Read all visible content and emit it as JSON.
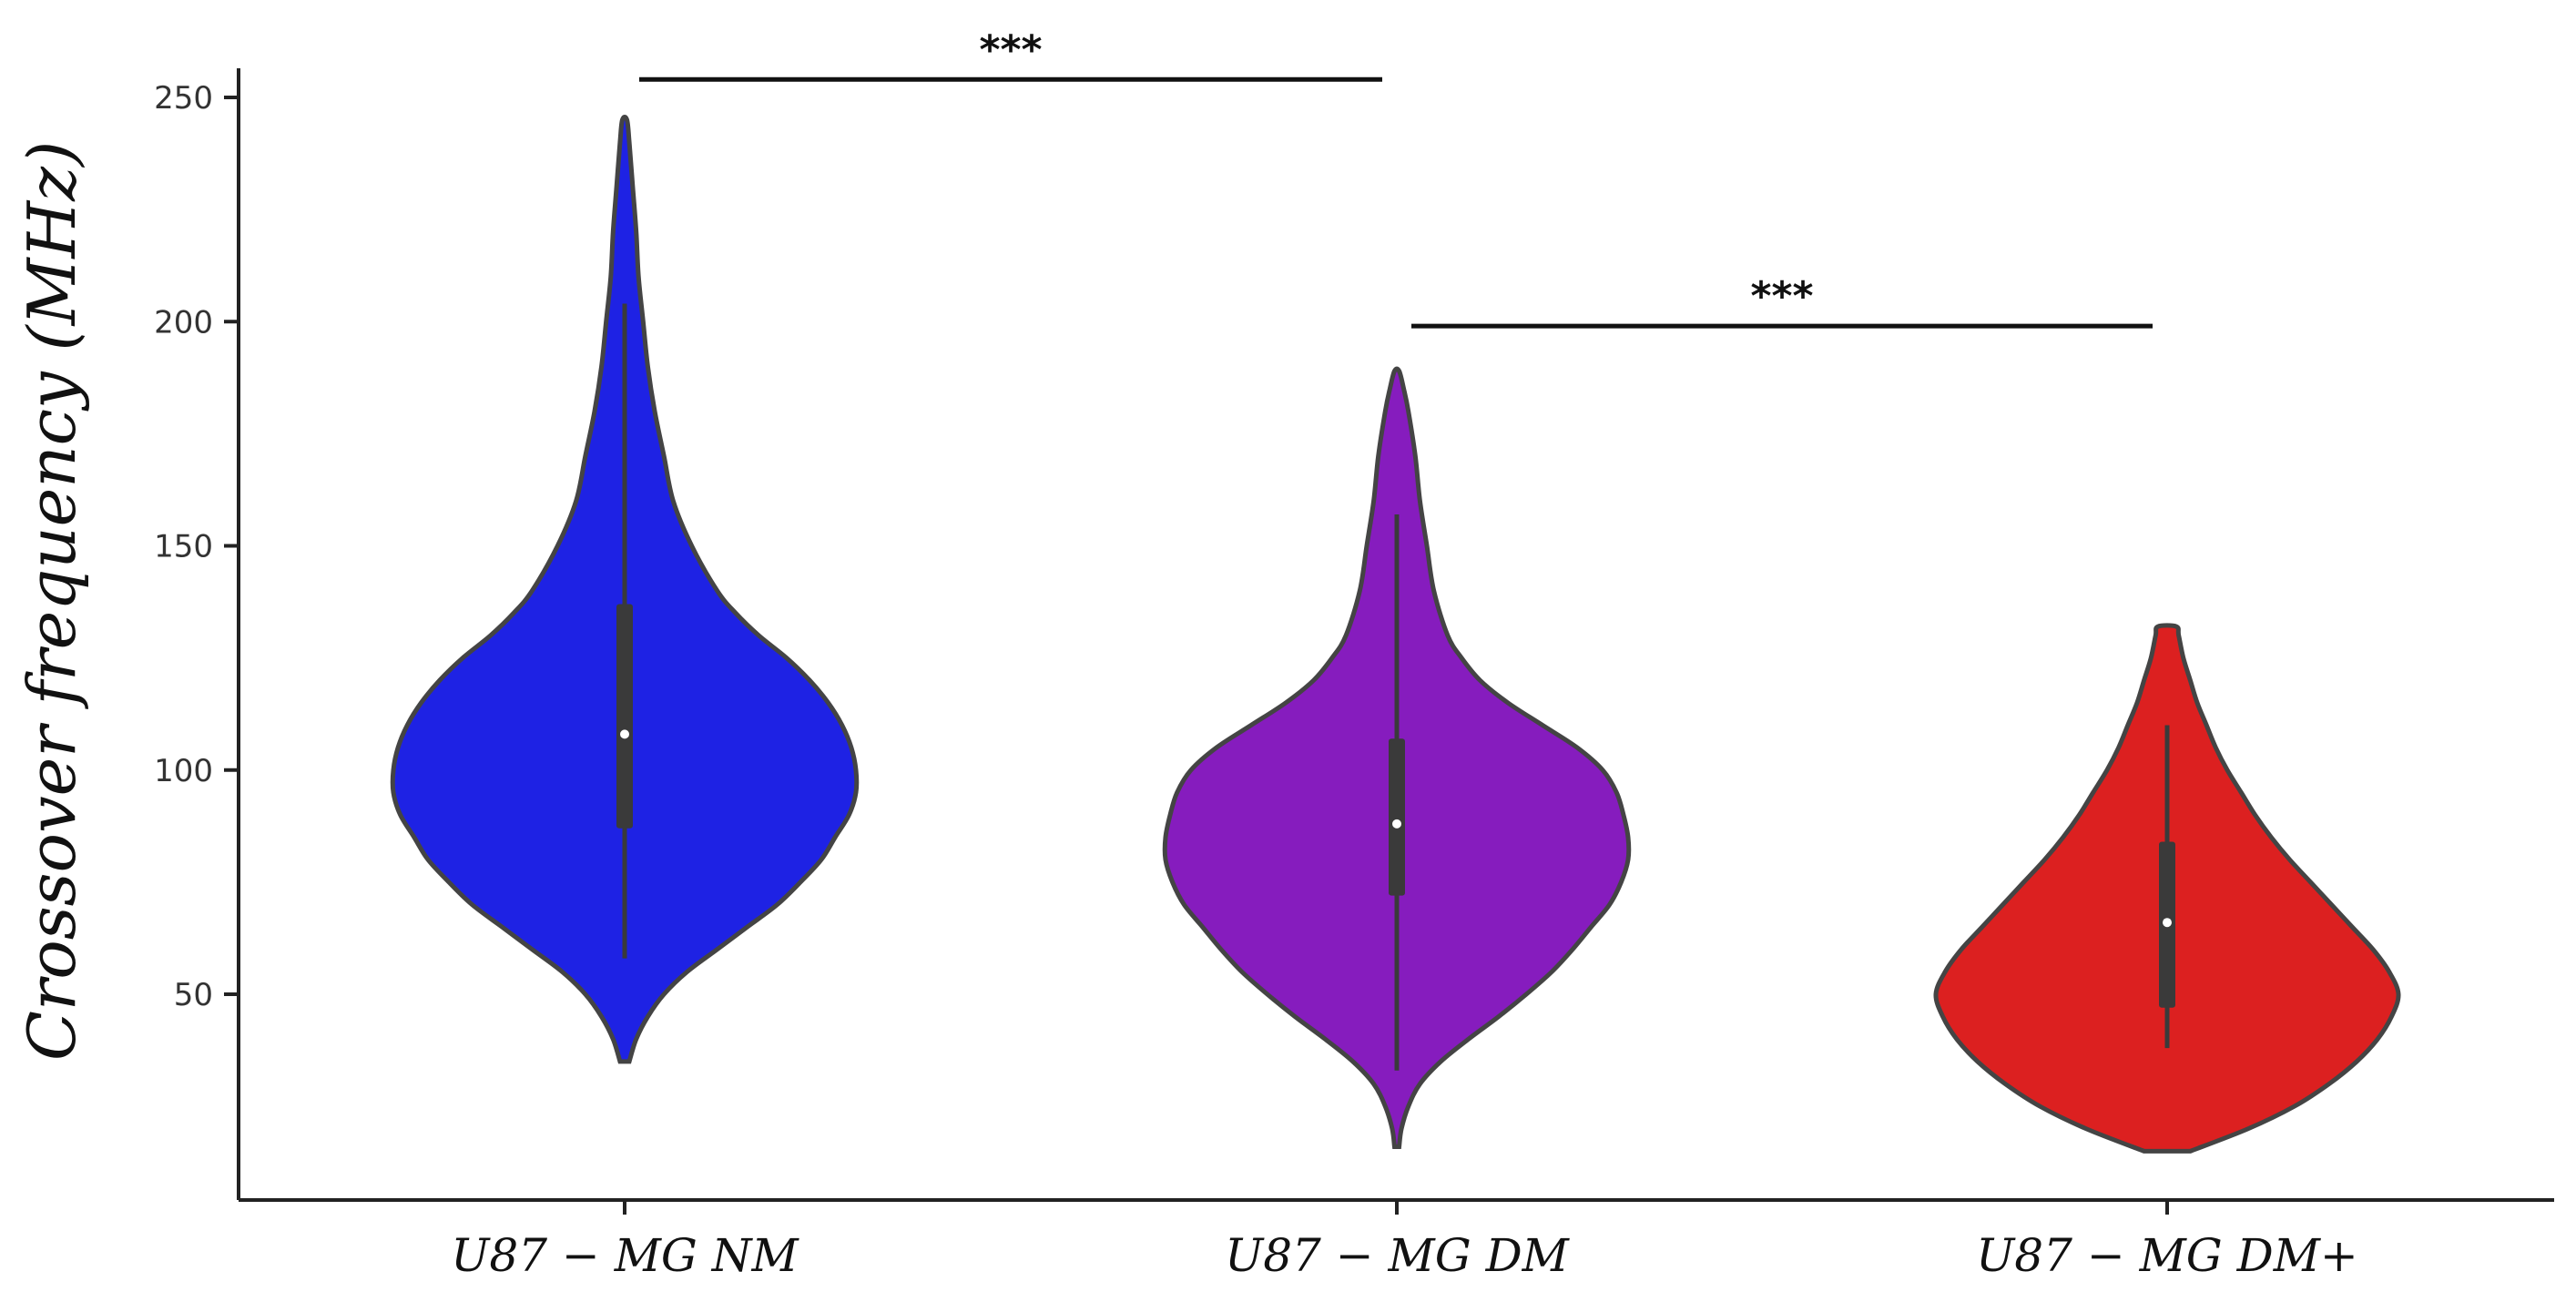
{
  "chart_data": {
    "type": "violin",
    "ylabel": "Crossover frequency (MHz)",
    "categories": [
      "U87 − MG NM",
      "U87 − MG DM",
      "U87 − MG DM+"
    ],
    "yticks": [
      50,
      100,
      150,
      200,
      250
    ],
    "ylim": [
      0,
      255
    ],
    "grid": false,
    "legend": "none",
    "series": [
      {
        "color": "#1e22e4",
        "min": 35,
        "max": 245,
        "q1": 87,
        "median": 108,
        "q3": 137,
        "whisker_low": 58,
        "whisker_high": 204,
        "density": [
          [
            35,
            0.02
          ],
          [
            40,
            0.05
          ],
          [
            45,
            0.1
          ],
          [
            50,
            0.17
          ],
          [
            55,
            0.27
          ],
          [
            60,
            0.4
          ],
          [
            65,
            0.53
          ],
          [
            70,
            0.66
          ],
          [
            75,
            0.76
          ],
          [
            80,
            0.85
          ],
          [
            85,
            0.91
          ],
          [
            90,
            0.97
          ],
          [
            95,
            1.0
          ],
          [
            100,
            1.0
          ],
          [
            105,
            0.98
          ],
          [
            110,
            0.94
          ],
          [
            115,
            0.88
          ],
          [
            120,
            0.8
          ],
          [
            125,
            0.7
          ],
          [
            130,
            0.58
          ],
          [
            135,
            0.48
          ],
          [
            140,
            0.4
          ],
          [
            150,
            0.29
          ],
          [
            160,
            0.21
          ],
          [
            170,
            0.17
          ],
          [
            180,
            0.13
          ],
          [
            190,
            0.1
          ],
          [
            200,
            0.08
          ],
          [
            210,
            0.06
          ],
          [
            220,
            0.05
          ],
          [
            230,
            0.035
          ],
          [
            240,
            0.02
          ],
          [
            245,
            0.01
          ]
        ]
      },
      {
        "color": "#861cbe",
        "min": 16,
        "max": 189,
        "q1": 72,
        "median": 88,
        "q3": 107,
        "whisker_low": 33,
        "whisker_high": 157,
        "density": [
          [
            16,
            0.01
          ],
          [
            20,
            0.02
          ],
          [
            25,
            0.05
          ],
          [
            30,
            0.1
          ],
          [
            35,
            0.19
          ],
          [
            40,
            0.31
          ],
          [
            45,
            0.44
          ],
          [
            50,
            0.56
          ],
          [
            55,
            0.67
          ],
          [
            60,
            0.76
          ],
          [
            65,
            0.84
          ],
          [
            70,
            0.92
          ],
          [
            75,
            0.97
          ],
          [
            80,
            1.0
          ],
          [
            85,
            1.0
          ],
          [
            90,
            0.98
          ],
          [
            95,
            0.95
          ],
          [
            100,
            0.89
          ],
          [
            105,
            0.78
          ],
          [
            110,
            0.63
          ],
          [
            115,
            0.48
          ],
          [
            120,
            0.36
          ],
          [
            125,
            0.28
          ],
          [
            130,
            0.22
          ],
          [
            140,
            0.16
          ],
          [
            150,
            0.13
          ],
          [
            160,
            0.1
          ],
          [
            170,
            0.08
          ],
          [
            180,
            0.05
          ],
          [
            185,
            0.03
          ],
          [
            189,
            0.01
          ]
        ]
      },
      {
        "color": "#dc2020",
        "min": 15,
        "max": 132,
        "q1": 47,
        "median": 66,
        "q3": 84,
        "whisker_low": 38,
        "whisker_high": 110,
        "density": [
          [
            15,
            0.1
          ],
          [
            20,
            0.35
          ],
          [
            25,
            0.55
          ],
          [
            30,
            0.7
          ],
          [
            35,
            0.82
          ],
          [
            40,
            0.91
          ],
          [
            45,
            0.97
          ],
          [
            50,
            1.0
          ],
          [
            55,
            0.96
          ],
          [
            60,
            0.89
          ],
          [
            65,
            0.8
          ],
          [
            70,
            0.71
          ],
          [
            75,
            0.62
          ],
          [
            80,
            0.53
          ],
          [
            85,
            0.45
          ],
          [
            90,
            0.38
          ],
          [
            95,
            0.32
          ],
          [
            100,
            0.26
          ],
          [
            105,
            0.21
          ],
          [
            110,
            0.17
          ],
          [
            115,
            0.13
          ],
          [
            120,
            0.1
          ],
          [
            125,
            0.07
          ],
          [
            130,
            0.05
          ],
          [
            132,
            0.04
          ]
        ]
      }
    ],
    "annotations": [
      {
        "text": "***",
        "from": 0,
        "to": 1,
        "y": 254
      },
      {
        "text": "***",
        "from": 1,
        "to": 2,
        "y": 199
      }
    ]
  }
}
